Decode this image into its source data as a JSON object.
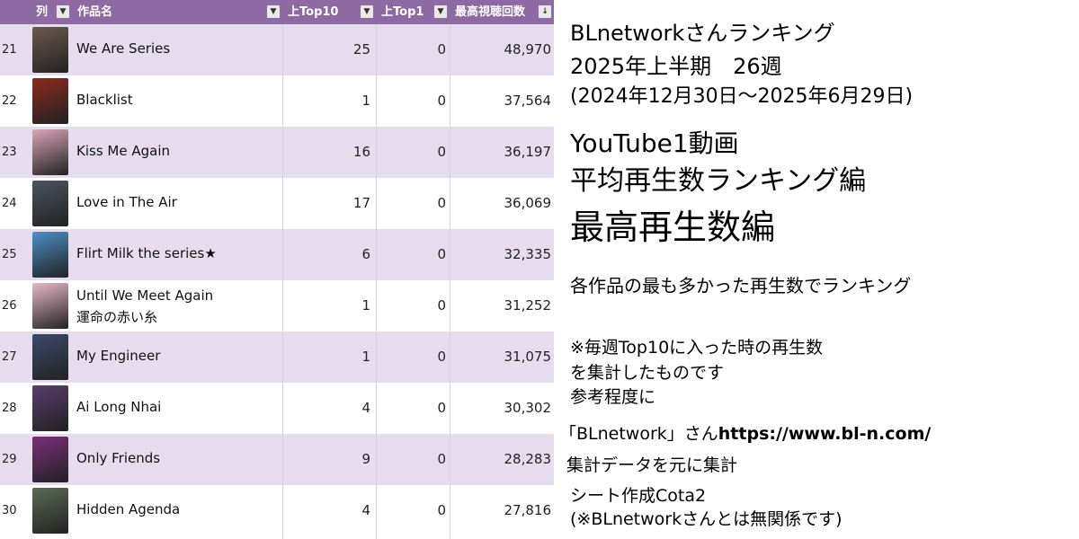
{
  "table": {
    "headers": {
      "col_rank": "列",
      "col_title": "作品名",
      "col_top10": "上Top10",
      "col_top1": "上Top1",
      "col_max": "最高視聴回数"
    },
    "rows": [
      {
        "rank": "21",
        "title": "We Are Series",
        "subtitle": "",
        "top10": "25",
        "top1": "0",
        "max": "48,970",
        "thumb_color": "#6b5a4e"
      },
      {
        "rank": "22",
        "title": "Blacklist",
        "subtitle": "",
        "top10": "1",
        "top1": "0",
        "max": "37,564",
        "thumb_color": "#8a2a1e"
      },
      {
        "rank": "23",
        "title": "Kiss Me Again",
        "subtitle": "",
        "top10": "16",
        "top1": "0",
        "max": "36,197",
        "thumb_color": "#d9a5b8"
      },
      {
        "rank": "24",
        "title": "Love in The Air",
        "subtitle": "",
        "top10": "17",
        "top1": "0",
        "max": "36,069",
        "thumb_color": "#4a5560"
      },
      {
        "rank": "25",
        "title": "Flirt Milk the series★",
        "subtitle": "",
        "top10": "6",
        "top1": "0",
        "max": "32,335",
        "thumb_color": "#4d8fc7"
      },
      {
        "rank": "26",
        "title": "Until We Meet Again",
        "subtitle": "運命の赤い糸",
        "top10": "1",
        "top1": "0",
        "max": "31,252",
        "thumb_color": "#e7b9c9"
      },
      {
        "rank": "27",
        "title": "My Engineer",
        "subtitle": "",
        "top10": "1",
        "top1": "0",
        "max": "31,075",
        "thumb_color": "#3b4a6b"
      },
      {
        "rank": "28",
        "title": "Ai Long Nhai",
        "subtitle": "",
        "top10": "4",
        "top1": "0",
        "max": "30,302",
        "thumb_color": "#5a3d6e"
      },
      {
        "rank": "29",
        "title": "Only Friends",
        "subtitle": "",
        "top10": "9",
        "top1": "0",
        "max": "28,283",
        "thumb_color": "#7b2f7a"
      },
      {
        "rank": "30",
        "title": "Hidden Agenda",
        "subtitle": "",
        "top10": "4",
        "top1": "0",
        "max": "27,816",
        "thumb_color": "#5b6b55"
      }
    ]
  },
  "info": {
    "line1": "BLnetworkさんランキング",
    "line2": "2025年上半期　26週",
    "line3": "(2024年12月30日～2025年6月29日)",
    "line4": "YouTube1動画",
    "line5": "平均再生数ランキング編",
    "line6": "最高再生数編",
    "line7": "各作品の最も多かった再生数でランキング",
    "note1": "※毎週Top10に入った時の再生数",
    "note2": "を集計したものです",
    "note3": "参考程度に",
    "source_name": "「BLnetwork」さん",
    "source_url": "https://www.bl-n.com/",
    "source_desc": "集計データを元に集計",
    "credit": "シート作成Cota2",
    "disclaimer": "(※BLnetworkさんとは無関係です)"
  },
  "colors": {
    "header_bg": "#8e6aa3",
    "row_alt_bg": "#e6dcee"
  }
}
